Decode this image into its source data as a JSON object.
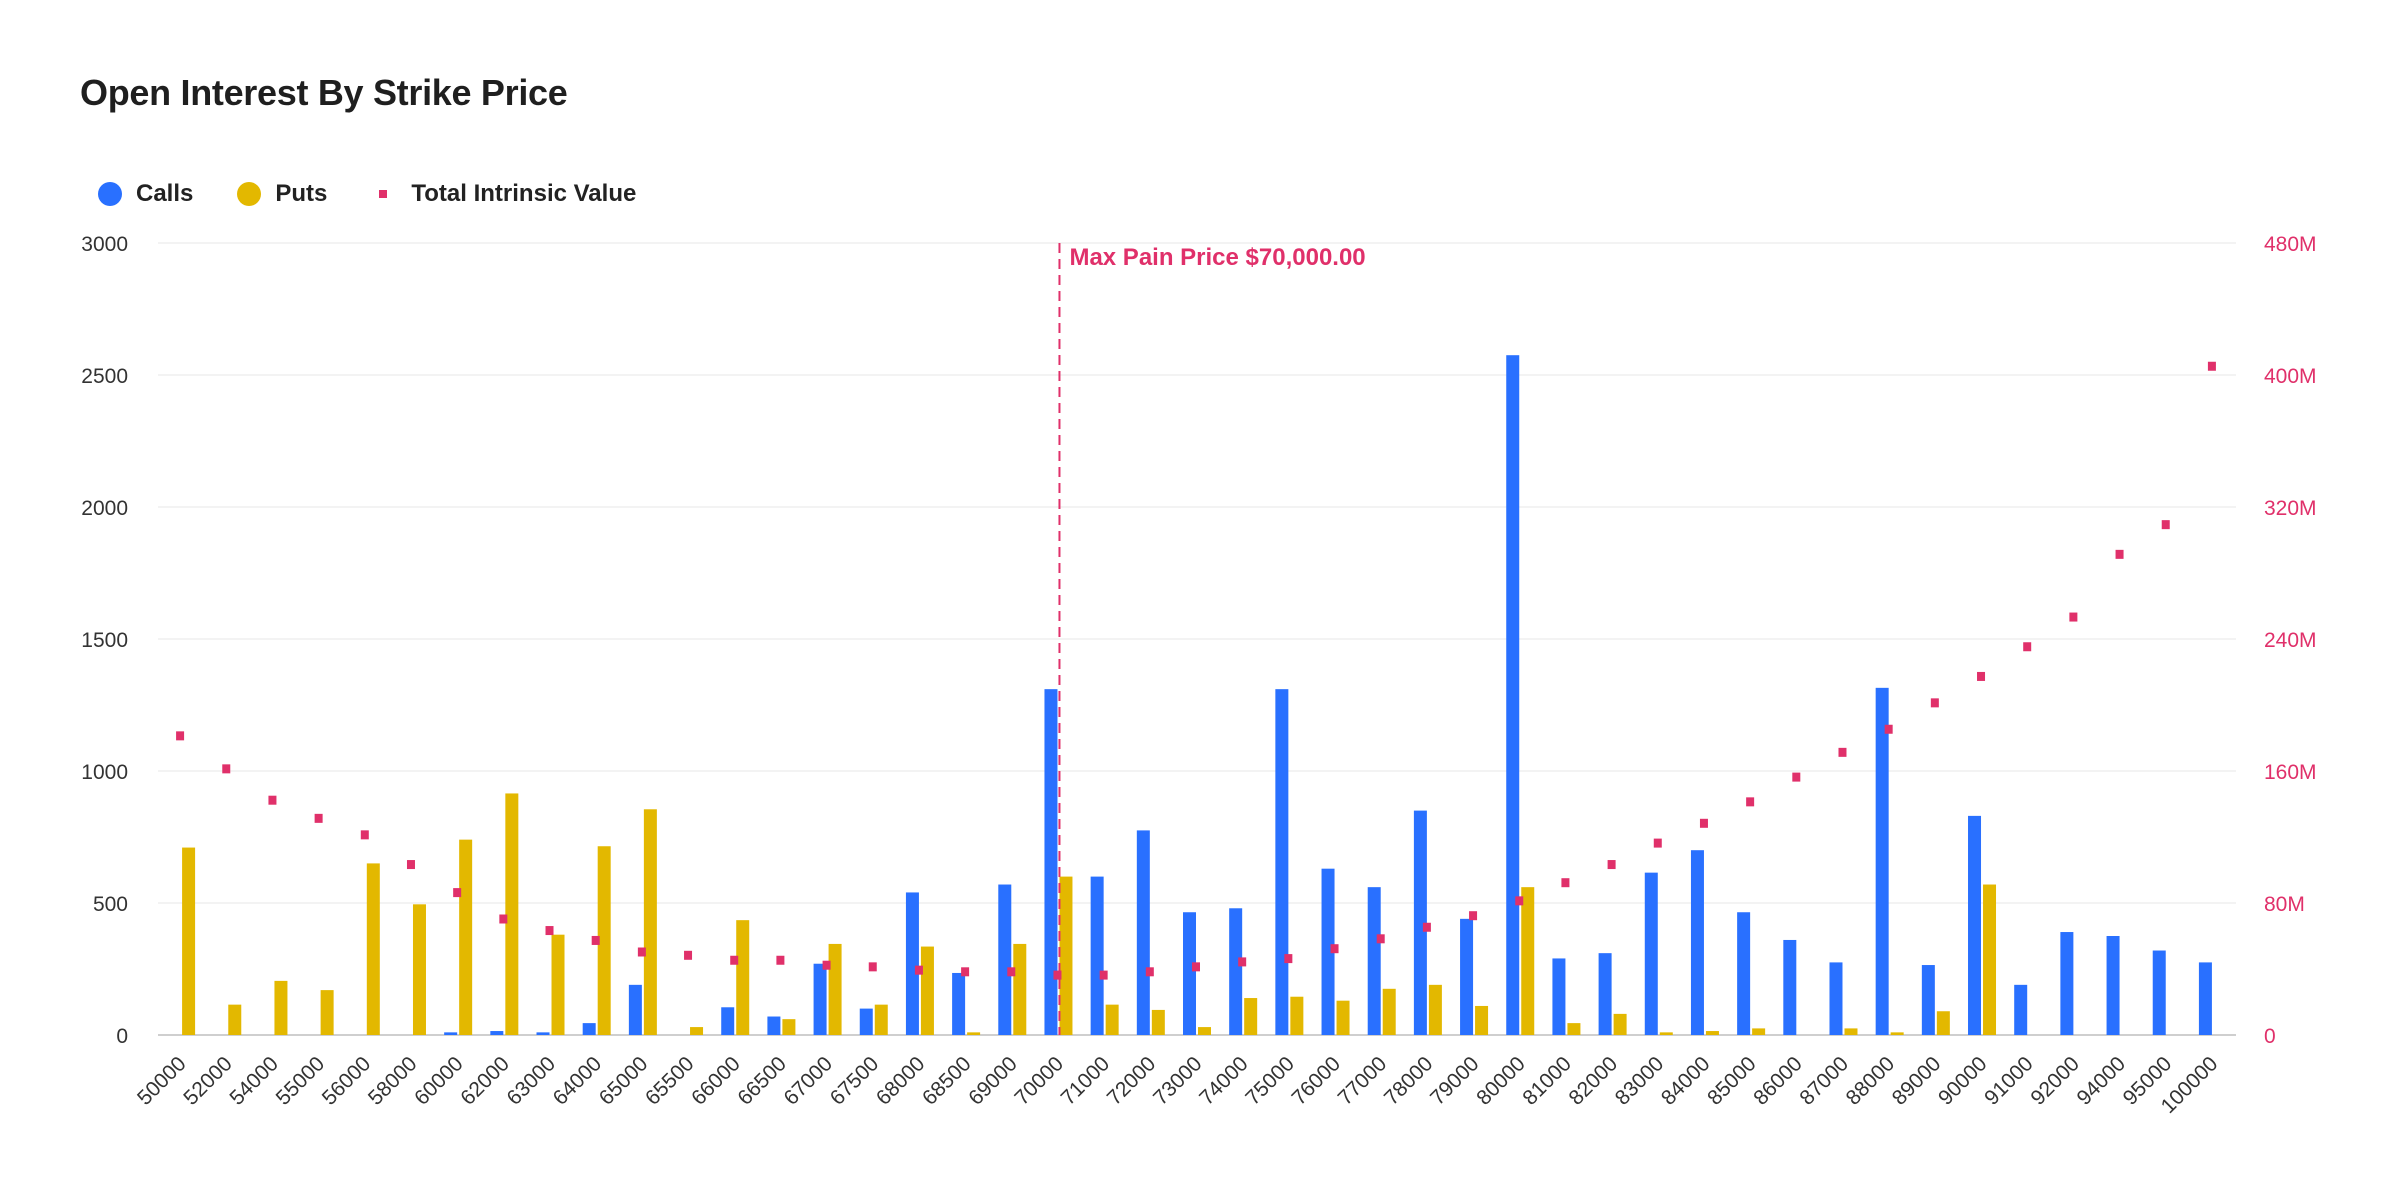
{
  "title": "Open Interest By Strike Price",
  "legend": [
    {
      "label": "Calls",
      "color": "#2970ff",
      "shape": "circle"
    },
    {
      "label": "Puts",
      "color": "#e3b800",
      "shape": "circle"
    },
    {
      "label": "Total Intrinsic Value",
      "color": "#e0306a",
      "shape": "square"
    }
  ],
  "annotation": {
    "label": "Max Pain Price $70,000.00",
    "strike": "70000",
    "color": "#e0306a"
  },
  "chart_data": {
    "type": "bar",
    "title": "Open Interest By Strike Price",
    "xlabel": "",
    "ylabel": "",
    "ylim": [
      0,
      3000
    ],
    "y_ticks": [
      "0",
      "500",
      "1000",
      "1500",
      "2000",
      "2500",
      "3000"
    ],
    "y2lim": [
      0,
      480
    ],
    "y2_ticks": [
      "0",
      "80M",
      "160M",
      "240M",
      "320M",
      "400M",
      "480M"
    ],
    "grid": true,
    "legend_position": "top-left",
    "categories": [
      "50000",
      "52000",
      "54000",
      "55000",
      "56000",
      "58000",
      "60000",
      "62000",
      "63000",
      "64000",
      "65000",
      "65500",
      "66000",
      "66500",
      "67000",
      "67500",
      "68000",
      "68500",
      "69000",
      "70000",
      "71000",
      "72000",
      "73000",
      "74000",
      "75000",
      "76000",
      "77000",
      "78000",
      "79000",
      "80000",
      "81000",
      "82000",
      "83000",
      "84000",
      "85000",
      "86000",
      "87000",
      "88000",
      "89000",
      "90000",
      "91000",
      "92000",
      "94000",
      "95000",
      "100000"
    ],
    "series": [
      {
        "name": "Calls",
        "type": "bar",
        "axis": "left",
        "color": "#2970ff",
        "values": [
          0,
          0,
          0,
          0,
          0,
          0,
          10,
          15,
          10,
          45,
          190,
          0,
          105,
          70,
          270,
          100,
          540,
          235,
          570,
          1310,
          600,
          775,
          465,
          480,
          1310,
          630,
          560,
          850,
          440,
          2575,
          290,
          310,
          615,
          700,
          465,
          360,
          275,
          1315,
          265,
          830,
          190,
          390,
          375,
          320,
          275
        ]
      },
      {
        "name": "Puts",
        "type": "bar",
        "axis": "left",
        "color": "#e3b800",
        "values": [
          710,
          115,
          205,
          170,
          650,
          495,
          740,
          915,
          380,
          715,
          855,
          30,
          435,
          60,
          345,
          115,
          335,
          10,
          345,
          600,
          115,
          95,
          30,
          140,
          145,
          130,
          175,
          190,
          110,
          560,
          45,
          80,
          10,
          15,
          25,
          0,
          25,
          10,
          90,
          570,
          0,
          0,
          0,
          0,
          0
        ]
      },
      {
        "name": "Total Intrinsic Value",
        "type": "scatter",
        "axis": "right",
        "unit": "M",
        "color": "#e0306a",
        "values": [
          181,
          161,
          142,
          131,
          121,
          103,
          86,
          70,
          63,
          57,
          50,
          48,
          45,
          45,
          42,
          41,
          39,
          38,
          38,
          36,
          36,
          38,
          41,
          44,
          46,
          52,
          58,
          65,
          72,
          81,
          92,
          103,
          116,
          128,
          141,
          156,
          171,
          185,
          201,
          217,
          235,
          253,
          291,
          309,
          405
        ]
      }
    ],
    "annotations": [
      {
        "type": "vline",
        "x": "70000",
        "label": "Max Pain Price $70,000.00"
      }
    ]
  }
}
